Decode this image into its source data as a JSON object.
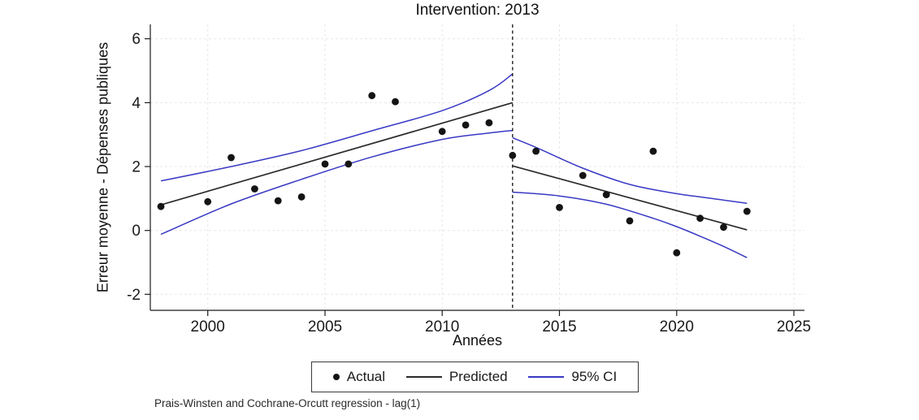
{
  "note": "Prais-Winsten and Cochrane-Orcutt regression - lag(1)",
  "chart_data": {
    "type": "scatter",
    "title": "Intervention: 2013",
    "xlabel": "Années",
    "ylabel": "Erreur moyenne - Dépenses publiques",
    "x_ticks": [
      2000,
      2005,
      2010,
      2015,
      2020,
      2025
    ],
    "y_ticks": [
      -2,
      0,
      2,
      4,
      6
    ],
    "x_domain": [
      1997.55,
      2025.45
    ],
    "y_domain": [
      -2.5,
      6.45
    ],
    "grid": true,
    "intervention_year": 2013,
    "actual": [
      [
        1998,
        0.75
      ],
      [
        2000,
        0.9
      ],
      [
        2001,
        2.28
      ],
      [
        2002,
        1.3
      ],
      [
        2003,
        0.93
      ],
      [
        2004,
        1.05
      ],
      [
        2005,
        2.08
      ],
      [
        2006,
        2.08
      ],
      [
        2007,
        4.22
      ],
      [
        2008,
        4.03
      ],
      [
        2010,
        3.1
      ],
      [
        2011,
        3.3
      ],
      [
        2012,
        3.37
      ],
      [
        2013,
        2.35
      ],
      [
        2014,
        2.48
      ],
      [
        2015,
        0.72
      ],
      [
        2016,
        1.72
      ],
      [
        2017,
        1.12
      ],
      [
        2018,
        0.3
      ],
      [
        2019,
        2.48
      ],
      [
        2020,
        -0.7
      ],
      [
        2021,
        0.38
      ],
      [
        2022,
        0.1
      ],
      [
        2023,
        0.6
      ]
    ],
    "predicted_pre": [
      [
        1998,
        0.8
      ],
      [
        2013,
        4.0
      ]
    ],
    "predicted_post": [
      [
        2013,
        2.02
      ],
      [
        2023,
        0.02
      ]
    ],
    "ci_upper_pre": [
      [
        1998,
        1.55
      ],
      [
        2001,
        2.0
      ],
      [
        2004,
        2.5
      ],
      [
        2007,
        3.12
      ],
      [
        2010,
        3.75
      ],
      [
        2012,
        4.38
      ],
      [
        2013,
        4.9
      ]
    ],
    "ci_lower_pre": [
      [
        1998,
        -0.12
      ],
      [
        2001,
        0.83
      ],
      [
        2004,
        1.6
      ],
      [
        2007,
        2.3
      ],
      [
        2010,
        2.85
      ],
      [
        2012,
        3.05
      ],
      [
        2013,
        3.13
      ]
    ],
    "ci_upper_post": [
      [
        2013,
        2.9
      ],
      [
        2014,
        2.6
      ],
      [
        2016,
        1.95
      ],
      [
        2018,
        1.44
      ],
      [
        2020,
        1.15
      ],
      [
        2021,
        1.05
      ],
      [
        2023,
        0.85
      ]
    ],
    "ci_lower_post": [
      [
        2013,
        1.2
      ],
      [
        2015,
        1.08
      ],
      [
        2017,
        0.82
      ],
      [
        2019,
        0.38
      ],
      [
        2020,
        0.12
      ],
      [
        2021,
        -0.18
      ],
      [
        2022,
        -0.5
      ],
      [
        2023,
        -0.85
      ]
    ],
    "colors": {
      "actual": "#141414",
      "predicted": "#2b2b2b",
      "ci": "#3939c4",
      "grid": "#e7e7e7",
      "axis": "#1a1a1a",
      "intervention_line": "#111111"
    },
    "legend": {
      "position": "bottom",
      "items": [
        {
          "label": "Actual",
          "marker": "dot"
        },
        {
          "label": "Predicted",
          "marker": "line-black"
        },
        {
          "label": "95% CI",
          "marker": "line-blue"
        }
      ]
    }
  }
}
